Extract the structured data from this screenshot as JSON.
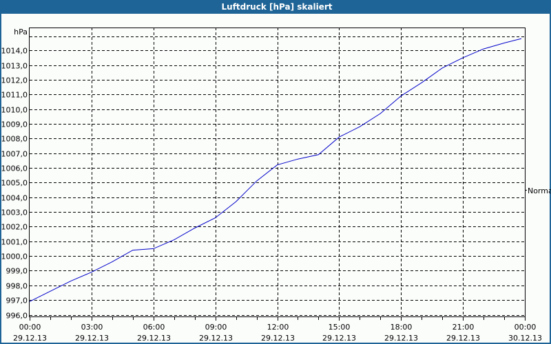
{
  "window": {
    "title": "Luftdruck [hPa] skaliert",
    "title_bar_color": "#1e6496"
  },
  "chart": {
    "y_unit_label": "hPa",
    "right_label": "Normal",
    "line_color": "#0000c8"
  },
  "chart_data": {
    "type": "line",
    "title": "Luftdruck [hPa] skaliert",
    "xlabel": "",
    "ylabel": "hPa",
    "ylim": [
      996.0,
      1015.0
    ],
    "grid": true,
    "legend": [
      "Normal"
    ],
    "y_ticks": [
      "996,0",
      "997,0",
      "998,0",
      "999,0",
      "1000,0",
      "1001,0",
      "1002,0",
      "1003,0",
      "1004,0",
      "1005,0",
      "1006,0",
      "1007,0",
      "1008,0",
      "1009,0",
      "1010,0",
      "1011,0",
      "1012,0",
      "1013,0",
      "1014,0"
    ],
    "x_ticks": [
      {
        "time": "00:00",
        "date": "29.12.13"
      },
      {
        "time": "03:00",
        "date": "29.12.13"
      },
      {
        "time": "06:00",
        "date": "29.12.13"
      },
      {
        "time": "09:00",
        "date": "29.12.13"
      },
      {
        "time": "12:00",
        "date": "29.12.13"
      },
      {
        "time": "15:00",
        "date": "29.12.13"
      },
      {
        "time": "18:00",
        "date": "29.12.13"
      },
      {
        "time": "21:00",
        "date": "29.12.13"
      },
      {
        "time": "00:00",
        "date": "30.12.13"
      }
    ],
    "x": [
      "00:00",
      "01:00",
      "02:00",
      "03:00",
      "04:00",
      "05:00",
      "06:00",
      "07:00",
      "08:00",
      "09:00",
      "10:00",
      "11:00",
      "12:00",
      "13:00",
      "14:00",
      "15:00",
      "16:00",
      "17:00",
      "18:00",
      "19:00",
      "20:00",
      "21:00",
      "22:00",
      "23:00",
      "23:50"
    ],
    "series": [
      {
        "name": "Normal",
        "values": [
          996.9,
          997.6,
          998.3,
          998.9,
          999.6,
          1000.4,
          1000.5,
          1001.1,
          1001.9,
          1002.6,
          1003.7,
          1005.1,
          1006.2,
          1006.6,
          1006.9,
          1008.1,
          1008.8,
          1009.7,
          1010.9,
          1011.8,
          1012.8,
          1013.5,
          1014.1,
          1014.5,
          1014.8
        ]
      }
    ]
  }
}
